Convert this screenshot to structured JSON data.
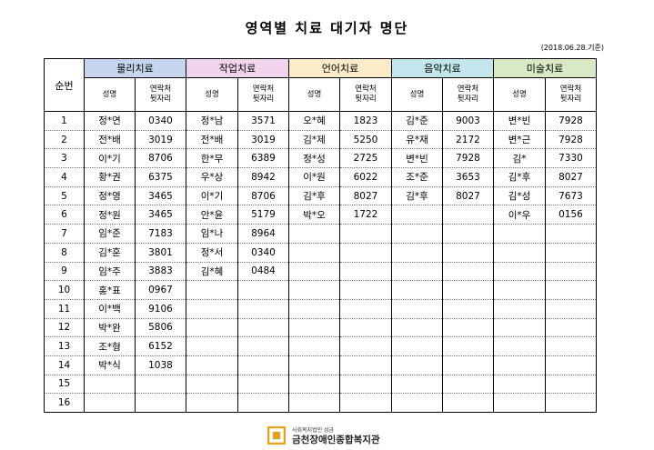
{
  "title": "영역별 치료 대기자 명단",
  "date_note": "(2018.06.28.기준)",
  "seq_header": "순번",
  "sub_headers": {
    "name": "성명",
    "contact": "연락처 뒷자리"
  },
  "therapies": [
    {
      "label": "물리치료",
      "color": "#c6d6ee",
      "entries": [
        {
          "name": "정*연",
          "contact": "0340"
        },
        {
          "name": "전*배",
          "contact": "3019"
        },
        {
          "name": "이*기",
          "contact": "8706"
        },
        {
          "name": "황*권",
          "contact": "6375"
        },
        {
          "name": "정*영",
          "contact": "3465"
        },
        {
          "name": "정*원",
          "contact": "3465"
        },
        {
          "name": "임*준",
          "contact": "7183"
        },
        {
          "name": "김*훈",
          "contact": "3801"
        },
        {
          "name": "임*주",
          "contact": "3883"
        },
        {
          "name": "홍*표",
          "contact": "0967"
        },
        {
          "name": "이*백",
          "contact": "9106"
        },
        {
          "name": "박*완",
          "contact": "5806"
        },
        {
          "name": "조*형",
          "contact": "6152"
        },
        {
          "name": "박*식",
          "contact": "1038"
        }
      ]
    },
    {
      "label": "작업치료",
      "color": "#f0d4ee",
      "entries": [
        {
          "name": "정*남",
          "contact": "3571"
        },
        {
          "name": "전*배",
          "contact": "3019"
        },
        {
          "name": "한*무",
          "contact": "6389"
        },
        {
          "name": "우*상",
          "contact": "8942"
        },
        {
          "name": "이*기",
          "contact": "8706"
        },
        {
          "name": "안*윤",
          "contact": "5179"
        },
        {
          "name": "임*나",
          "contact": "8964"
        },
        {
          "name": "정*서",
          "contact": "0340"
        },
        {
          "name": "김*혜",
          "contact": "0484"
        }
      ]
    },
    {
      "label": "언어치료",
      "color": "#fcebc8",
      "entries": [
        {
          "name": "오*혜",
          "contact": "1823"
        },
        {
          "name": "김*제",
          "contact": "5250"
        },
        {
          "name": "정*성",
          "contact": "2725"
        },
        {
          "name": "이*원",
          "contact": "6022"
        },
        {
          "name": "김*후",
          "contact": "8027"
        },
        {
          "name": "박*오",
          "contact": "1722"
        }
      ]
    },
    {
      "label": "음악치료",
      "color": "#c3e6ec",
      "entries": [
        {
          "name": "김*준",
          "contact": "9003"
        },
        {
          "name": "유*재",
          "contact": "2172"
        },
        {
          "name": "변*빈",
          "contact": "7928"
        },
        {
          "name": "조*준",
          "contact": "3653"
        },
        {
          "name": "김*후",
          "contact": "8027"
        }
      ]
    },
    {
      "label": "미술치료",
      "color": "#d8e9c3",
      "entries": [
        {
          "name": "변*빈",
          "contact": "7928"
        },
        {
          "name": "변*근",
          "contact": "7928"
        },
        {
          "name": "김*",
          "contact": "7330"
        },
        {
          "name": "김*후",
          "contact": "8027"
        },
        {
          "name": "김*성",
          "contact": "7673"
        },
        {
          "name": "이*우",
          "contact": "0156"
        }
      ]
    }
  ],
  "rows": [
    "1",
    "2",
    "3",
    "4",
    "5",
    "6",
    "7",
    "8",
    "9",
    "10",
    "11",
    "12",
    "13",
    "14",
    "15",
    "16"
  ],
  "footer": {
    "org_small": "사회복지법인 성금",
    "org_name": "금천장애인종합복지관",
    "logo_icon": "org-logo-icon",
    "logo_color": "#e8a21a"
  }
}
